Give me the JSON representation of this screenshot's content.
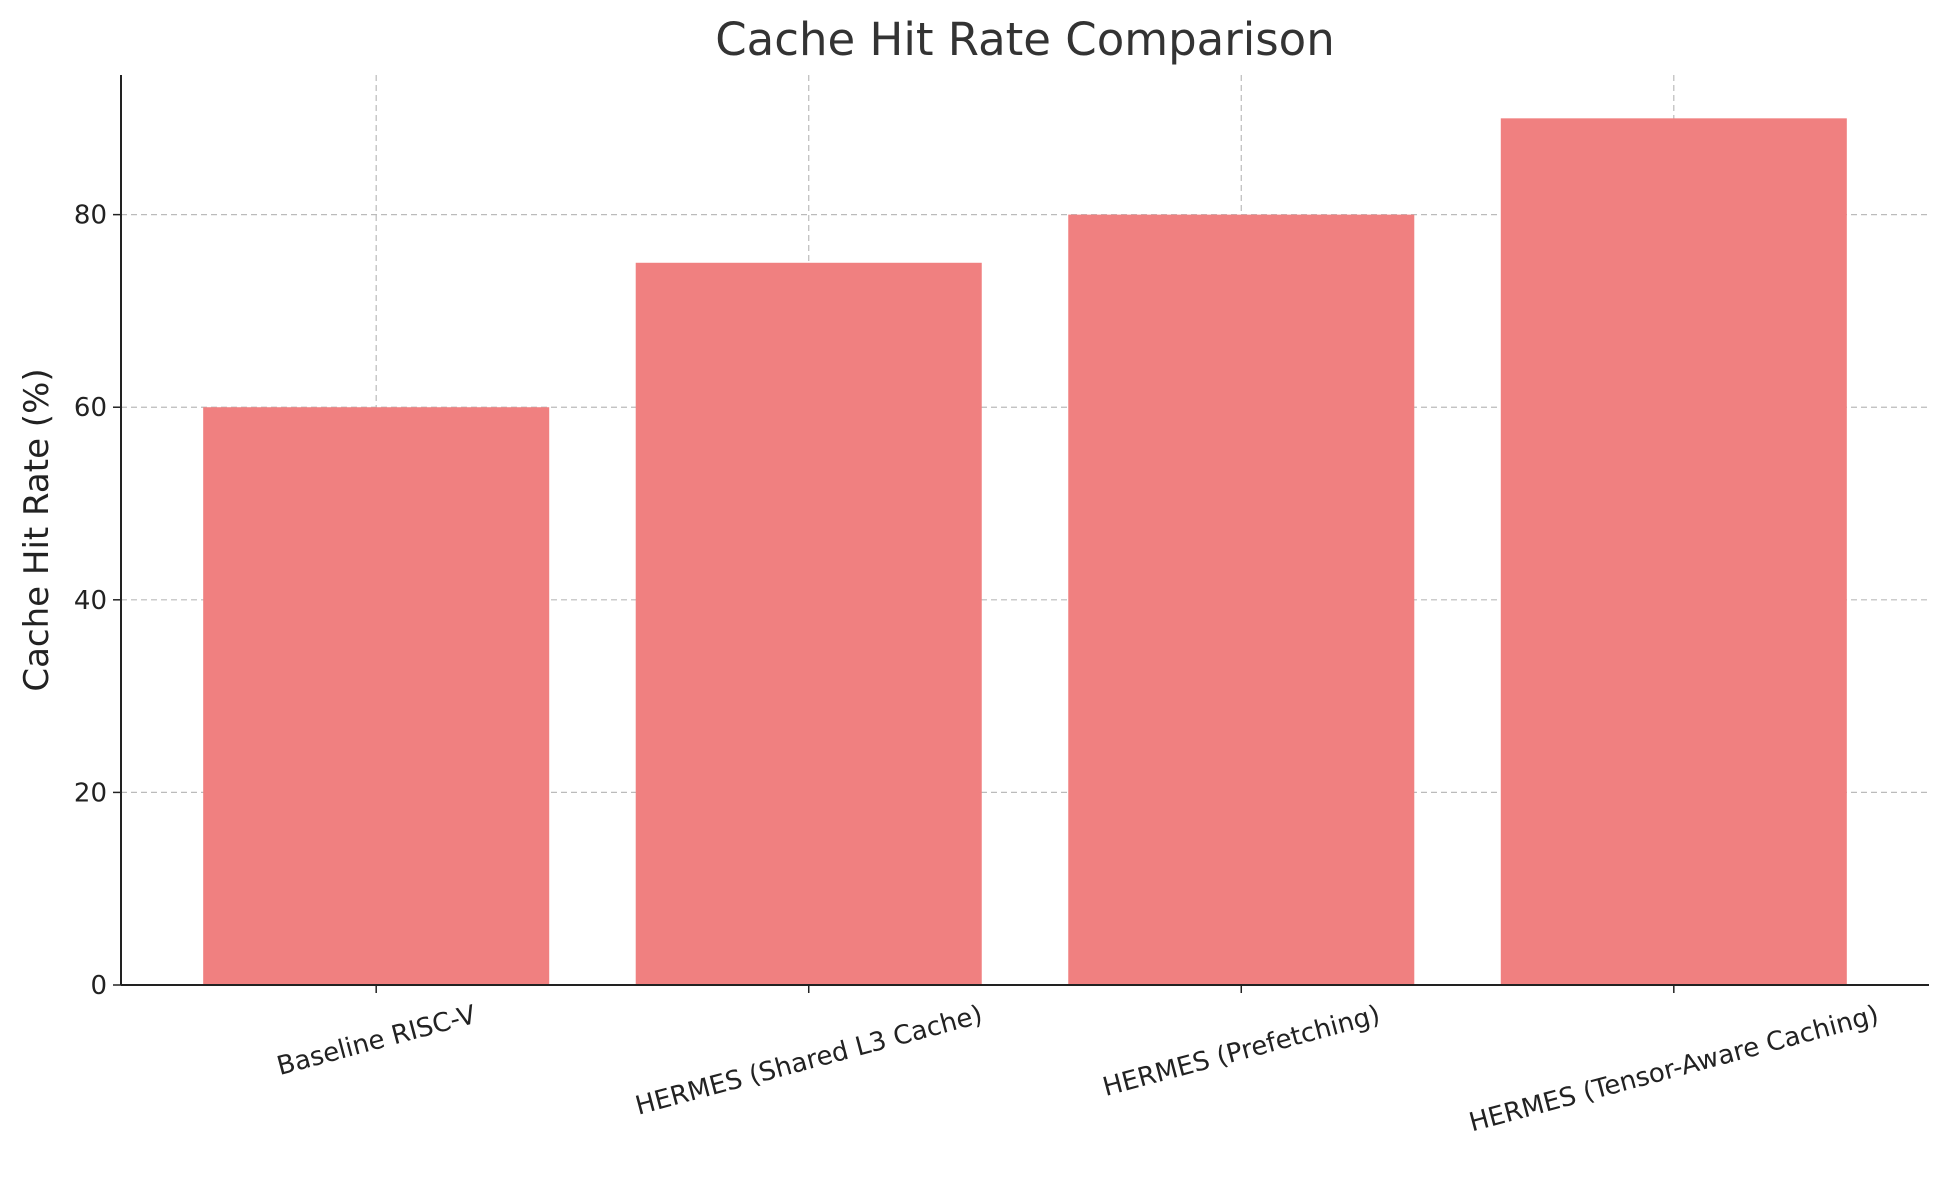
{
  "chart_data": {
    "type": "bar",
    "title": "Cache Hit Rate Comparison",
    "y_label": "Cache Hit Rate (%)",
    "categories": [
      "Baseline RISC-V",
      "HERMES (Shared L3 Cache)",
      "HERMES (Prefetching)",
      "HERMES (Tensor-Aware Caching)"
    ],
    "values": [
      60,
      75,
      80,
      90
    ],
    "color": "#f08080",
    "ylim": [
      0,
      94.5
    ],
    "yticks": [
      0,
      20,
      40,
      60,
      80
    ],
    "grid": true
  }
}
